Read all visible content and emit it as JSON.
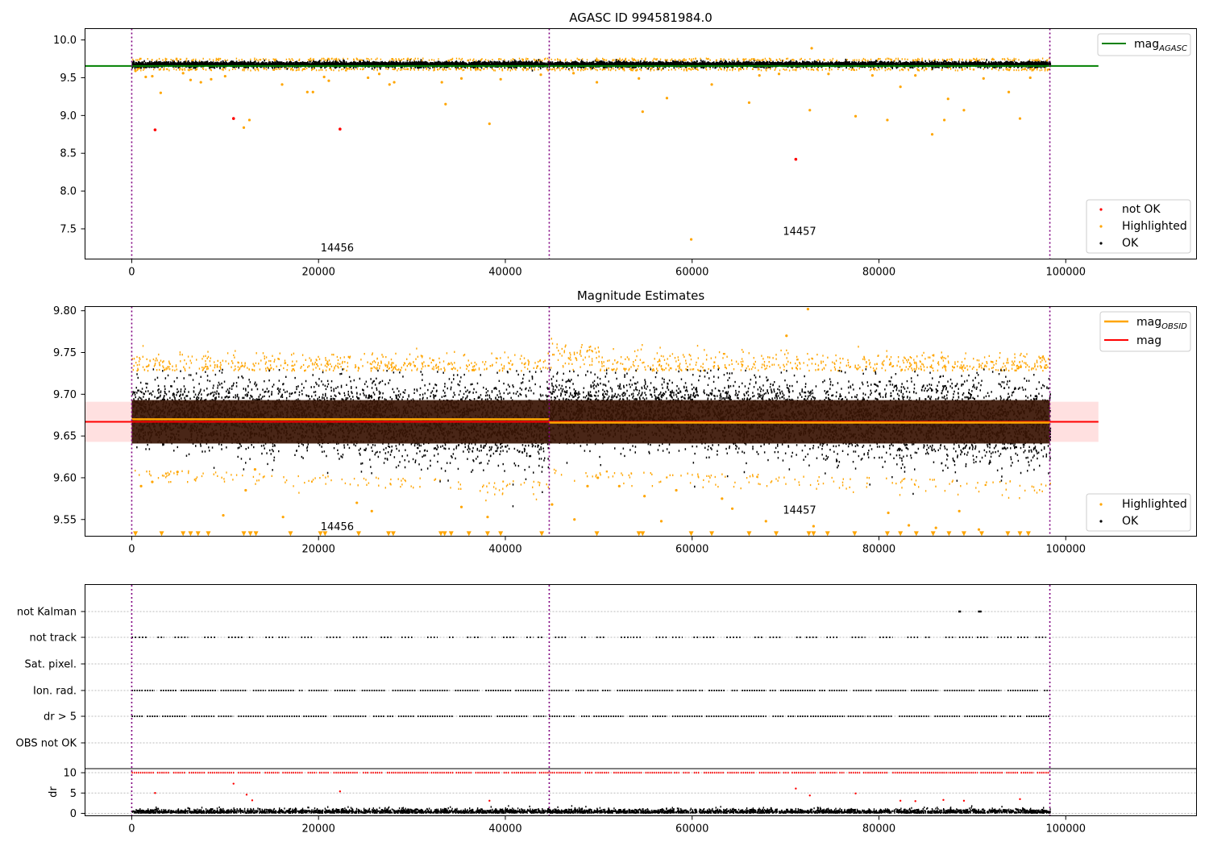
{
  "chart_data": [
    {
      "type": "scatter",
      "title": "AGASC ID 994581984.0",
      "x_ticks": [
        "0",
        "20000",
        "40000",
        "60000",
        "80000",
        "100000"
      ],
      "xlim": [
        -5000,
        114000
      ],
      "ylim": [
        7.1,
        10.15
      ],
      "y_ticks": [
        "7.5",
        "8.0",
        "8.5",
        "9.0",
        "9.5",
        "10.0"
      ],
      "obsid_boundaries": [
        0,
        44700,
        98300
      ],
      "obsid_labels": [
        {
          "text": "14456",
          "x": 22000,
          "y": 7.2
        },
        {
          "text": "14457",
          "x": 71500,
          "y": 7.42
        }
      ],
      "reference_line": {
        "name": "mag_AGASC",
        "y": 9.655,
        "x_range": [
          -5000,
          103500
        ],
        "color": "#008000"
      },
      "legend_upper": {
        "label_main": "mag",
        "label_sub": "AGASC"
      },
      "legend_lower": [
        "not OK",
        "Highlighted",
        "OK"
      ],
      "colors": {
        "ok": "#000000",
        "highlighted": "#ffa500",
        "not_ok": "#ff0000",
        "boundary": "#800080"
      },
      "ok_band": {
        "segments": [
          {
            "x": [
              0,
              44700
            ],
            "y": [
              9.61,
              9.71
            ]
          },
          {
            "x": [
              44700,
              98300
            ],
            "y": [
              9.6,
              9.73
            ]
          }
        ]
      },
      "not_ok_points": [
        [
          2500,
          8.81
        ],
        [
          10900,
          8.96
        ],
        [
          22300,
          8.82
        ],
        [
          71100,
          8.42
        ]
      ],
      "highlighted_points": [
        [
          400,
          9.59
        ],
        [
          1500,
          9.51
        ],
        [
          2200,
          9.52
        ],
        [
          3100,
          9.3
        ],
        [
          5500,
          9.56
        ],
        [
          6300,
          9.47
        ],
        [
          7400,
          9.44
        ],
        [
          8500,
          9.48
        ],
        [
          10000,
          9.52
        ],
        [
          12000,
          8.84
        ],
        [
          12600,
          8.94
        ],
        [
          16100,
          9.41
        ],
        [
          18800,
          9.31
        ],
        [
          19400,
          9.31
        ],
        [
          20600,
          9.51
        ],
        [
          21100,
          9.46
        ],
        [
          25300,
          9.5
        ],
        [
          26500,
          9.55
        ],
        [
          27600,
          9.41
        ],
        [
          28100,
          9.44
        ],
        [
          33200,
          9.44
        ],
        [
          33600,
          9.15
        ],
        [
          35300,
          9.49
        ],
        [
          38300,
          8.89
        ],
        [
          39500,
          9.48
        ],
        [
          43800,
          9.54
        ],
        [
          47300,
          9.56
        ],
        [
          49800,
          9.44
        ],
        [
          54300,
          9.49
        ],
        [
          54700,
          9.05
        ],
        [
          57300,
          9.23
        ],
        [
          59900,
          7.36
        ],
        [
          62100,
          9.41
        ],
        [
          66100,
          9.17
        ],
        [
          67200,
          9.53
        ],
        [
          69300,
          9.55
        ],
        [
          72600,
          9.07
        ],
        [
          72800,
          9.89
        ],
        [
          74600,
          9.55
        ],
        [
          77500,
          8.99
        ],
        [
          79300,
          9.53
        ],
        [
          80900,
          8.94
        ],
        [
          82300,
          9.38
        ],
        [
          83900,
          9.53
        ],
        [
          85700,
          8.75
        ],
        [
          87000,
          8.94
        ],
        [
          87400,
          9.22
        ],
        [
          89100,
          9.07
        ],
        [
          91200,
          9.49
        ],
        [
          93900,
          9.31
        ],
        [
          95100,
          8.96
        ],
        [
          96200,
          9.5
        ]
      ]
    },
    {
      "type": "scatter",
      "title": "Magnitude Estimates",
      "x_ticks": [
        "0",
        "20000",
        "40000",
        "60000",
        "80000",
        "100000"
      ],
      "xlim": [
        -5000,
        114000
      ],
      "ylim": [
        9.53,
        9.805
      ],
      "y_ticks": [
        "9.55",
        "9.60",
        "9.65",
        "9.70",
        "9.75",
        "9.80"
      ],
      "obsid_boundaries": [
        0,
        44700,
        98300
      ],
      "obsid_labels": [
        {
          "text": "14456",
          "x": 22000,
          "y": 9.537
        },
        {
          "text": "14457",
          "x": 71500,
          "y": 9.557
        }
      ],
      "mag_line": {
        "name": "mag",
        "y": 9.667,
        "band": [
          9.643,
          9.691
        ],
        "x_range": [
          -5000,
          103500
        ],
        "color": "#ff0000"
      },
      "mag_obsid": [
        {
          "x": [
            0,
            44700
          ],
          "y": 9.67
        },
        {
          "x": [
            44700,
            98300
          ],
          "y": 9.666
        }
      ],
      "legend_upper": [
        {
          "label_main": "mag",
          "label_sub": "OBSID"
        },
        {
          "label_main": "mag",
          "label_sub": ""
        }
      ],
      "legend_lower": [
        "Highlighted",
        "OK"
      ],
      "ok_range": {
        "segment1": {
          "x": [
            0,
            44700
          ],
          "low": [
            9.63,
            9.6
          ],
          "high": [
            9.73,
            9.72
          ]
        },
        "segment2": {
          "x": [
            44700,
            98300
          ],
          "low": [
            9.62,
            9.59
          ],
          "high": [
            9.73,
            9.72
          ]
        }
      },
      "dark_band": [
        9.641,
        9.693
      ]
    },
    {
      "type": "scatter",
      "title": "",
      "categories": [
        "not Kalman",
        "not track",
        "Sat. pixel.",
        "Ion. rad.",
        "dr > 5",
        "OBS not OK"
      ],
      "x_ticks": [
        "0",
        "20000",
        "40000",
        "60000",
        "80000",
        "100000"
      ],
      "xlim": [
        -5000,
        114000
      ],
      "flags_present": {
        "not Kalman": [
          [
            88500,
            88700
          ],
          [
            90600,
            90900
          ]
        ],
        "not track": "intermittent",
        "Sat. pixel.": "none",
        "Ion. rad.": "intermittent",
        "dr > 5": "intermittent",
        "OBS not OK": "none"
      },
      "dr_panel": {
        "ylabel": "dr",
        "y_ticks": [
          "0",
          "5",
          "10"
        ],
        "ylim": [
          -0.5,
          11
        ],
        "clipped_value": 10,
        "outliers": [
          [
            2500,
            5.0
          ],
          [
            10900,
            7.3
          ],
          [
            12300,
            4.6
          ],
          [
            12900,
            3.2
          ],
          [
            22300,
            5.4
          ],
          [
            38300,
            3.1
          ],
          [
            71100,
            6.1
          ],
          [
            72600,
            4.4
          ],
          [
            77500,
            4.9
          ],
          [
            82300,
            3.1
          ],
          [
            83900,
            3.0
          ],
          [
            86900,
            3.3
          ],
          [
            89100,
            3.1
          ],
          [
            95100,
            3.5
          ]
        ]
      }
    }
  ]
}
